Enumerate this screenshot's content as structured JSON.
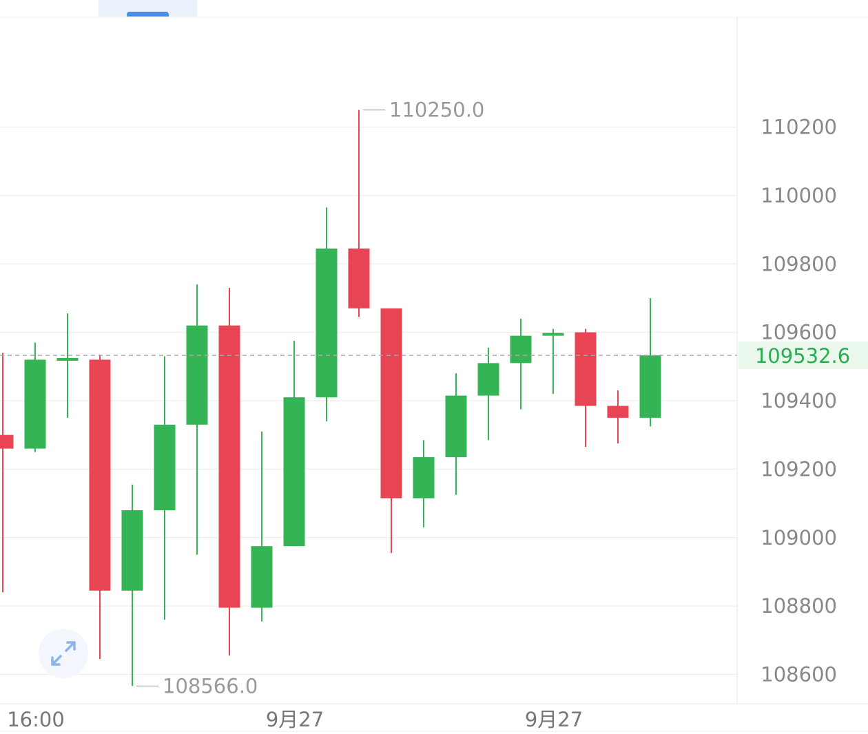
{
  "ui": {
    "expand_icon": "expand-diagonal-arrows-icon"
  },
  "chart_data": {
    "type": "candlestick",
    "title": "",
    "xlabel": "",
    "ylabel": "",
    "ylim": [
      108520,
      110480
    ],
    "y_ticks": [
      110200,
      110000,
      109800,
      109600,
      109400,
      109200,
      109000,
      108800,
      108600
    ],
    "x_tick_labels": [
      {
        "label": "16:00",
        "candle_index": 0
      },
      {
        "label": "9月27",
        "candle_index": 8
      },
      {
        "label": "9月27",
        "candle_index": 16
      }
    ],
    "candles": [
      {
        "open": 109300,
        "close": 109260,
        "high": 109540,
        "low": 108840
      },
      {
        "open": 109260,
        "close": 109520,
        "high": 109570,
        "low": 109250
      },
      {
        "open": 109520,
        "close": 109525,
        "high": 109655,
        "low": 109350
      },
      {
        "open": 109520,
        "close": 108845,
        "high": 109535,
        "low": 108645
      },
      {
        "open": 108845,
        "close": 109080,
        "high": 109155,
        "low": 108566
      },
      {
        "open": 109080,
        "close": 109330,
        "high": 109530,
        "low": 108760
      },
      {
        "open": 109330,
        "close": 109620,
        "high": 109740,
        "low": 108950
      },
      {
        "open": 109620,
        "close": 108795,
        "high": 109730,
        "low": 108655
      },
      {
        "open": 108795,
        "close": 108975,
        "high": 109310,
        "low": 108755
      },
      {
        "open": 108975,
        "close": 109410,
        "high": 109575,
        "low": 108975
      },
      {
        "open": 109410,
        "close": 109845,
        "high": 109965,
        "low": 109340
      },
      {
        "open": 109845,
        "close": 109670,
        "high": 110250,
        "low": 109645
      },
      {
        "open": 109670,
        "close": 109115,
        "high": 109670,
        "low": 108955
      },
      {
        "open": 109115,
        "close": 109235,
        "high": 109285,
        "low": 109030
      },
      {
        "open": 109235,
        "close": 109415,
        "high": 109480,
        "low": 109125
      },
      {
        "open": 109415,
        "close": 109510,
        "high": 109555,
        "low": 109285
      },
      {
        "open": 109510,
        "close": 109590,
        "high": 109640,
        "low": 109375
      },
      {
        "open": 109590,
        "close": 109598,
        "high": 109610,
        "low": 109420
      },
      {
        "open": 109600,
        "close": 109385,
        "high": 109610,
        "low": 109265
      },
      {
        "open": 109385,
        "close": 109350,
        "high": 109430,
        "low": 109275
      },
      {
        "open": 109350,
        "close": 109532.6,
        "high": 109700,
        "low": 109325
      }
    ],
    "annotations": [
      {
        "text": "110250.0",
        "kind": "max",
        "candle_index": 11,
        "price": 110250
      },
      {
        "text": "108566.0",
        "kind": "min",
        "candle_index": 4,
        "price": 108566
      }
    ],
    "last_price": {
      "text": "109532.6",
      "value": 109532.6
    },
    "colors": {
      "up": "#35b455",
      "down": "#e84554",
      "grid": "#eeeeee",
      "price_line": "#aaaaaa",
      "price_label_bg": "#eaf7ec",
      "price_label_text": "#2dab52"
    },
    "grid": true
  }
}
